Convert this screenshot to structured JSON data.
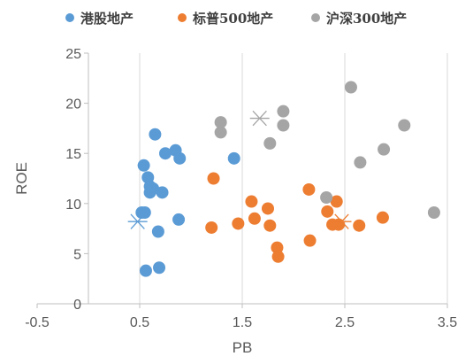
{
  "chart_data": {
    "type": "scatter",
    "title": "",
    "xlabel": "PB",
    "ylabel": "ROE",
    "xlim": [
      -0.5,
      3.5
    ],
    "ylim": [
      0,
      25
    ],
    "x_ticks": [
      "-0.5",
      "0.5",
      "1.5",
      "2.5",
      "3.5"
    ],
    "y_ticks": [
      "0",
      "5",
      "10",
      "15",
      "20",
      "25"
    ],
    "grid": "vertical",
    "legend_position": "top",
    "series": [
      {
        "name": "港股地产",
        "color": "#5b9bd5",
        "points": [
          [
            0.54,
            13.8
          ],
          [
            0.58,
            12.6
          ],
          [
            0.6,
            11.7
          ],
          [
            0.6,
            11.1
          ],
          [
            0.63,
            11.5
          ],
          [
            0.72,
            11.1
          ],
          [
            0.52,
            9.1
          ],
          [
            0.55,
            9.1
          ],
          [
            0.65,
            16.9
          ],
          [
            0.75,
            15.0
          ],
          [
            0.85,
            15.3
          ],
          [
            0.89,
            14.5
          ],
          [
            0.88,
            8.4
          ],
          [
            0.68,
            7.2
          ],
          [
            0.69,
            3.6
          ],
          [
            0.56,
            3.3
          ],
          [
            1.42,
            14.5
          ]
        ],
        "average": [
          0.48,
          8.2
        ]
      },
      {
        "name": "标普500地产",
        "color": "#ed7d31",
        "points": [
          [
            1.22,
            12.5
          ],
          [
            1.2,
            7.6
          ],
          [
            1.46,
            8.0
          ],
          [
            1.59,
            10.2
          ],
          [
            1.62,
            8.5
          ],
          [
            1.75,
            9.5
          ],
          [
            1.77,
            7.8
          ],
          [
            1.84,
            5.6
          ],
          [
            1.85,
            4.7
          ],
          [
            2.15,
            11.4
          ],
          [
            2.16,
            6.3
          ],
          [
            2.33,
            9.2
          ],
          [
            2.38,
            7.9
          ],
          [
            2.42,
            10.2
          ],
          [
            2.44,
            7.9
          ],
          [
            2.64,
            7.8
          ],
          [
            2.87,
            8.6
          ]
        ],
        "average": [
          2.47,
          8.2
        ]
      },
      {
        "name": "沪深300地产",
        "color": "#a5a5a5",
        "points": [
          [
            1.29,
            18.1
          ],
          [
            1.29,
            17.1
          ],
          [
            1.77,
            16.0
          ],
          [
            1.9,
            19.2
          ],
          [
            1.9,
            17.8
          ],
          [
            2.32,
            10.6
          ],
          [
            2.56,
            21.6
          ],
          [
            2.65,
            14.1
          ],
          [
            2.88,
            15.4
          ],
          [
            3.08,
            17.8
          ],
          [
            3.37,
            9.1
          ]
        ],
        "average": [
          1.67,
          18.5
        ]
      }
    ]
  }
}
